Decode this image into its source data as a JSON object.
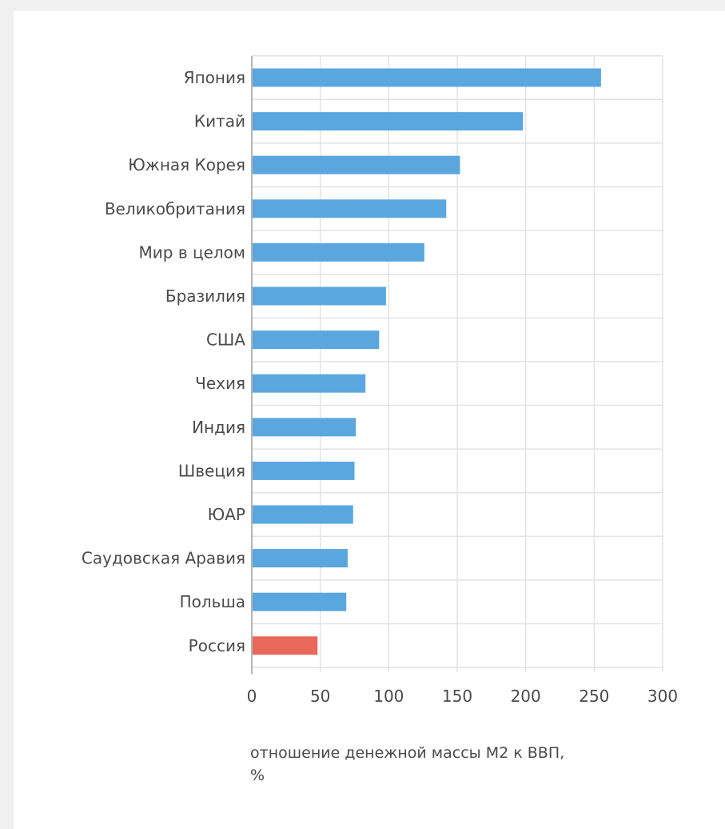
{
  "chart_data": {
    "type": "bar",
    "orientation": "horizontal",
    "categories": [
      "Япония",
      "Китай",
      "Южная Корея",
      "Великобритания",
      "Мир в целом",
      "Бразилия",
      "США",
      "Чехия",
      "Индия",
      "Швеция",
      "ЮАР",
      "Саудовская Аравия",
      "Польша",
      "Россия"
    ],
    "values": [
      255,
      198,
      152,
      142,
      126,
      98,
      93,
      83,
      76,
      75,
      74,
      70,
      69,
      48
    ],
    "colors": [
      "#5aa7e0",
      "#5aa7e0",
      "#5aa7e0",
      "#5aa7e0",
      "#5aa7e0",
      "#5aa7e0",
      "#5aa7e0",
      "#5aa7e0",
      "#5aa7e0",
      "#5aa7e0",
      "#5aa7e0",
      "#5aa7e0",
      "#5aa7e0",
      "#e8685a"
    ],
    "xlim": [
      0,
      300
    ],
    "xticks": [
      "0",
      "50",
      "100",
      "150",
      "200",
      "250",
      "300"
    ],
    "xlabel_lines": [
      "отношение денежной массы М2 к ВВП,",
      "%"
    ],
    "grid": true
  }
}
